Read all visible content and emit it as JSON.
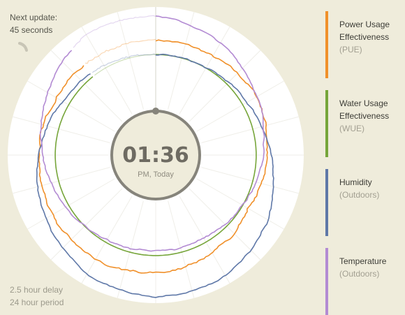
{
  "status": {
    "next_update_label": "Next update:",
    "next_update_value": "45 seconds",
    "delay_text": "2.5 hour delay",
    "period_text": "24 hour period"
  },
  "clock": {
    "time": "01:36",
    "subtitle": "PM, Today"
  },
  "legend": [
    {
      "label": "Power Usage Effectiveness",
      "sub": "(PUE)",
      "color": "#f0902a"
    },
    {
      "label": "Water Usage Effectiveness",
      "sub": "(WUE)",
      "color": "#76a53a"
    },
    {
      "label": "Humidity",
      "sub": "(Outdoors)",
      "color": "#5f78a8"
    },
    {
      "label": "Temperature",
      "sub": "(Outdoors)",
      "color": "#b38bd3"
    }
  ],
  "chart_data": {
    "type": "radial-line",
    "period_hours": 24,
    "delay_hours": 2.5,
    "current_time": "01:36 PM",
    "series": [
      {
        "name": "Power Usage Effectiveness",
        "color": "#f0902a",
        "level": 0.7,
        "trend": [
          0.7,
          0.69,
          0.72,
          0.66,
          0.62,
          0.68,
          0.73,
          0.75,
          0.74,
          0.72,
          0.7,
          0.7
        ]
      },
      {
        "name": "Water Usage Effectiveness",
        "color": "#76a53a",
        "level": 0.55,
        "trend": [
          0.55,
          0.55,
          0.55,
          0.55,
          0.55,
          0.55,
          0.55,
          0.55,
          0.55,
          0.55,
          0.55,
          0.55
        ]
      },
      {
        "name": "Humidity",
        "color": "#5f78a8",
        "level": 0.78,
        "trend": [
          0.55,
          0.55,
          0.6,
          0.7,
          0.85,
          0.95,
          0.98,
          0.93,
          0.82,
          0.72,
          0.62,
          0.58
        ]
      },
      {
        "name": "Temperature",
        "color": "#b38bd3",
        "level": 0.75,
        "trend": [
          0.95,
          0.85,
          0.72,
          0.62,
          0.55,
          0.5,
          0.5,
          0.52,
          0.58,
          0.68,
          0.8,
          0.95
        ]
      }
    ]
  }
}
